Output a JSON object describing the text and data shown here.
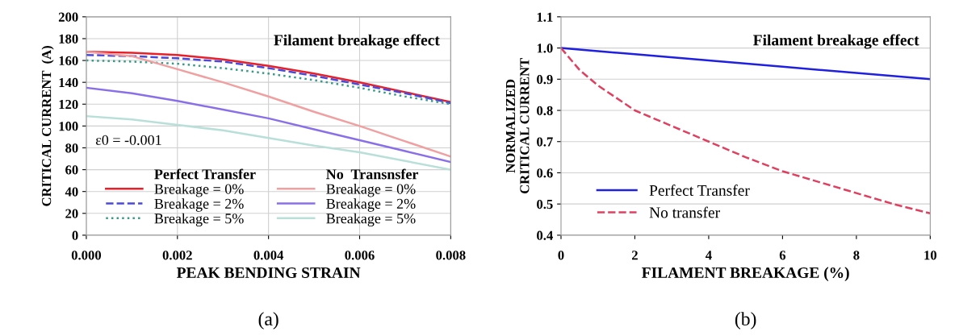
{
  "chart_data": [
    {
      "type": "line",
      "xlabel": "PEAK BENDING STRAIN",
      "ylabel": "CRITICAL CURRENT  (A)",
      "x": [
        0,
        0.001,
        0.002,
        0.003,
        0.004,
        0.005,
        0.006,
        0.007,
        0.008
      ],
      "xlim": [
        0,
        0.008
      ],
      "xticks": [
        {
          "value": 0,
          "label": "0.000"
        },
        {
          "value": 0.002,
          "label": "0.002"
        },
        {
          "value": 0.004,
          "label": "0.004"
        },
        {
          "value": 0.006,
          "label": "0.006"
        },
        {
          "value": 0.008,
          "label": "0.008"
        }
      ],
      "ylim": [
        0,
        200
      ],
      "yticks": [
        0,
        20,
        40,
        60,
        80,
        100,
        120,
        140,
        160,
        180,
        200
      ],
      "grid": true,
      "legend": "bottom left",
      "marker": "none",
      "annotations": [
        "Filament breakage effect",
        "ε0 = -0.001",
        "Perfect Transfer",
        "No  Transnsfer",
        "(a)"
      ],
      "series": [
        {
          "name": "Breakage = 0%",
          "color": "#e8202a",
          "line_style": "solid",
          "values": [
            168,
            167,
            165,
            161,
            155,
            148,
            140,
            131,
            122
          ]
        },
        {
          "name": "Breakage = 2%",
          "color": "#4a4ad8",
          "line_style": "dashed",
          "values": [
            165,
            164,
            162,
            159,
            153,
            146,
            138,
            130,
            121
          ]
        },
        {
          "name": "Breakage = 5%",
          "color": "#3a9a8a",
          "line_style": "dotted",
          "values": [
            160,
            159,
            157,
            153,
            148,
            142,
            135,
            127,
            120
          ]
        },
        {
          "name": "Breakage = 0%",
          "color": "#f0a0a0",
          "line_style": "solid",
          "values": [
            168,
            164,
            152,
            140,
            127,
            113,
            100,
            86,
            72
          ]
        },
        {
          "name": "Breakage = 2%",
          "color": "#8a70e8",
          "line_style": "solid",
          "values": [
            135,
            130,
            123,
            115,
            107,
            97,
            87,
            77,
            67
          ]
        },
        {
          "name": "Breakage = 5%",
          "color": "#b8e0d8",
          "line_style": "solid",
          "values": [
            109,
            106,
            101,
            96,
            89,
            82,
            76,
            68,
            60
          ]
        }
      ]
    },
    {
      "type": "line",
      "xlabel": "FILAMENT BREAKAGE (%)",
      "ylabel": "NORMALIZED\nCRITICAL CURRENT",
      "xlim": [
        0,
        10
      ],
      "xticks": [
        0,
        2,
        4,
        6,
        8,
        10
      ],
      "ylim": [
        0.4,
        1.1
      ],
      "yticks": [
        0.4,
        0.5,
        0.6,
        0.7,
        0.8,
        0.9,
        {
          "value": 1.0,
          "label": "1.0"
        },
        1.1
      ],
      "grid": "y",
      "legend": "bottom left",
      "marker": "none",
      "annotations": [
        "Filament breakage effect",
        "(b)"
      ],
      "series": [
        {
          "name": "Perfect Transfer",
          "color": "#2020e0",
          "line_style": "solid",
          "x": [
            0,
            2,
            4,
            6,
            8,
            10
          ],
          "values": [
            1.0,
            0.98,
            0.96,
            0.94,
            0.92,
            0.9
          ]
        },
        {
          "name": "No transfer",
          "color": "#e04060",
          "line_style": "dashed",
          "x": [
            0,
            0.5,
            1,
            2,
            3,
            4,
            5,
            6,
            7,
            8,
            9,
            10
          ],
          "values": [
            1.0,
            0.93,
            0.88,
            0.8,
            0.75,
            0.7,
            0.65,
            0.605,
            0.57,
            0.535,
            0.5,
            0.47
          ]
        }
      ]
    }
  ]
}
